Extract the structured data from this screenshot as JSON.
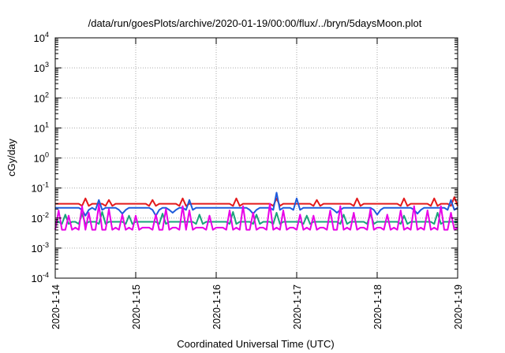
{
  "chart_data": {
    "type": "line",
    "title": "/data/run/goesPlots/archive/2020-01-19/00:00/flux/../bryn/5daysMoon.plot",
    "xlabel": "Coordinated Universal Time (UTC)",
    "ylabel": "cGy/day",
    "y_scale": "log",
    "ylim": [
      0.0001,
      10000
    ],
    "y_ticks": [
      {
        "value": 0.0001,
        "base": "10",
        "exp": "-4"
      },
      {
        "value": 0.001,
        "base": "10",
        "exp": "-3"
      },
      {
        "value": 0.01,
        "base": "10",
        "exp": "-2"
      },
      {
        "value": 0.1,
        "base": "10",
        "exp": "-1"
      },
      {
        "value": 1,
        "base": "10",
        "exp": "0"
      },
      {
        "value": 10,
        "base": "10",
        "exp": "1"
      },
      {
        "value": 100,
        "base": "10",
        "exp": "2"
      },
      {
        "value": 1000,
        "base": "10",
        "exp": "3"
      },
      {
        "value": 10000,
        "base": "10",
        "exp": "4"
      }
    ],
    "xlim": [
      "2020-01-14",
      "2020-01-19"
    ],
    "x_ticks": [
      "2020-1-14",
      "2020-1-15",
      "2020-1-16",
      "2020-1-17",
      "2020-1-18",
      "2020-1-19"
    ],
    "grid": true,
    "legend": "none",
    "sample_step_hours": 1,
    "series": [
      {
        "color": "#e41a1c",
        "baseline": 0.03,
        "spikes": [
          {
            "x": "2020-01-14T09:00",
            "y": 0.045
          },
          {
            "x": "2020-01-14T16:00",
            "y": 0.04
          },
          {
            "x": "2020-01-15T05:00",
            "y": 0.04
          },
          {
            "x": "2020-01-15T14:00",
            "y": 0.045
          },
          {
            "x": "2020-01-16T06:00",
            "y": 0.045
          },
          {
            "x": "2020-01-16T18:00",
            "y": 0.045
          },
          {
            "x": "2020-01-17T06:00",
            "y": 0.04
          },
          {
            "x": "2020-01-17T18:00",
            "y": 0.045
          },
          {
            "x": "2020-01-18T08:00",
            "y": 0.045
          },
          {
            "x": "2020-01-18T17:00",
            "y": 0.045
          },
          {
            "x": "2020-01-18T23:00",
            "y": 0.05
          }
        ]
      },
      {
        "color": "#1e5bdc",
        "baseline": 0.022,
        "spikes": [
          {
            "x": "2020-01-14T09:00",
            "y": 0.012
          },
          {
            "x": "2020-01-14T13:00",
            "y": 0.04
          },
          {
            "x": "2020-01-14T20:00",
            "y": 0.014
          },
          {
            "x": "2020-01-15T06:00",
            "y": 0.012
          },
          {
            "x": "2020-01-15T11:00",
            "y": 0.015
          },
          {
            "x": "2020-01-15T16:00",
            "y": 0.04
          },
          {
            "x": "2020-01-16T11:00",
            "y": 0.014
          },
          {
            "x": "2020-01-16T18:00",
            "y": 0.07
          },
          {
            "x": "2020-01-17T00:00",
            "y": 0.045
          },
          {
            "x": "2020-01-17T12:00",
            "y": 0.015
          },
          {
            "x": "2020-01-18T00:00",
            "y": 0.013
          },
          {
            "x": "2020-01-18T12:00",
            "y": 0.014
          },
          {
            "x": "2020-01-18T22:00",
            "y": 0.04
          }
        ]
      },
      {
        "color": "#1aa37a",
        "baseline": 0.0075,
        "spikes": [
          {
            "x": "2020-01-14T03:00",
            "y": 0.013
          },
          {
            "x": "2020-01-14T08:00",
            "y": 0.014
          },
          {
            "x": "2020-01-14T14:00",
            "y": 0.016
          },
          {
            "x": "2020-01-14T22:00",
            "y": 0.012
          },
          {
            "x": "2020-01-15T08:00",
            "y": 0.014
          },
          {
            "x": "2020-01-15T19:00",
            "y": 0.013
          },
          {
            "x": "2020-01-16T05:00",
            "y": 0.016
          },
          {
            "x": "2020-01-16T12:00",
            "y": 0.013
          },
          {
            "x": "2020-01-16T18:00",
            "y": 0.015
          },
          {
            "x": "2020-01-17T03:00",
            "y": 0.012
          },
          {
            "x": "2020-01-17T14:00",
            "y": 0.013
          },
          {
            "x": "2020-01-17T22:00",
            "y": 0.014
          },
          {
            "x": "2020-01-18T08:00",
            "y": 0.012
          },
          {
            "x": "2020-01-18T18:00",
            "y": 0.015
          }
        ]
      },
      {
        "color": "#e800e8",
        "baseline": 0.0048,
        "spikes": [
          {
            "x": "2020-01-14T01:00",
            "y": 0.018
          },
          {
            "x": "2020-01-14T04:00",
            "y": 0.012
          },
          {
            "x": "2020-01-14T08:00",
            "y": 0.025
          },
          {
            "x": "2020-01-14T10:00",
            "y": 0.015
          },
          {
            "x": "2020-01-14T13:00",
            "y": 0.028
          },
          {
            "x": "2020-01-14T16:00",
            "y": 0.02
          },
          {
            "x": "2020-01-14T20:00",
            "y": 0.013
          },
          {
            "x": "2020-01-15T00:00",
            "y": 0.012
          },
          {
            "x": "2020-01-15T06:00",
            "y": 0.013
          },
          {
            "x": "2020-01-15T09:00",
            "y": 0.02
          },
          {
            "x": "2020-01-15T14:00",
            "y": 0.025
          },
          {
            "x": "2020-01-15T16:00",
            "y": 0.018
          },
          {
            "x": "2020-01-15T22:00",
            "y": 0.012
          },
          {
            "x": "2020-01-16T04:00",
            "y": 0.018
          },
          {
            "x": "2020-01-16T08:00",
            "y": 0.025
          },
          {
            "x": "2020-01-16T11:00",
            "y": 0.015
          },
          {
            "x": "2020-01-16T16:00",
            "y": 0.03
          },
          {
            "x": "2020-01-16T20:00",
            "y": 0.018
          },
          {
            "x": "2020-01-17T01:00",
            "y": 0.013
          },
          {
            "x": "2020-01-17T05:00",
            "y": 0.012
          },
          {
            "x": "2020-01-17T10:00",
            "y": 0.018
          },
          {
            "x": "2020-01-17T13:00",
            "y": 0.025
          },
          {
            "x": "2020-01-17T17:00",
            "y": 0.015
          },
          {
            "x": "2020-01-17T22:00",
            "y": 0.02
          },
          {
            "x": "2020-01-18T03:00",
            "y": 0.013
          },
          {
            "x": "2020-01-18T07:00",
            "y": 0.018
          },
          {
            "x": "2020-01-18T11:00",
            "y": 0.025
          },
          {
            "x": "2020-01-18T15:00",
            "y": 0.018
          },
          {
            "x": "2020-01-18T19:00",
            "y": 0.025
          },
          {
            "x": "2020-01-18T22:00",
            "y": 0.015
          }
        ]
      }
    ]
  }
}
